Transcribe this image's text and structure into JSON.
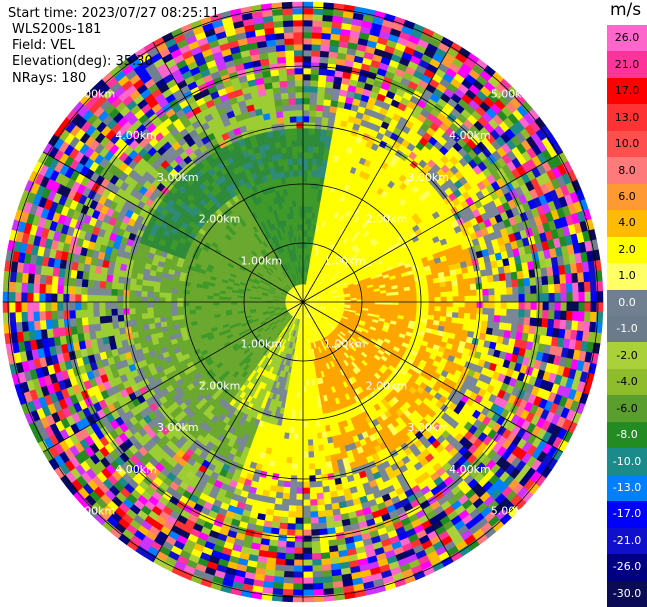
{
  "header": {
    "start_time": "Start time: 2023/07/27 08:25:11",
    "instrument": "WLS200s-181",
    "field": "Field: VEL",
    "elevation": "Elevation(deg): 35.30",
    "nrays": "NRays: 180"
  },
  "colorbar": {
    "unit": "m/s",
    "ticks": [
      "26.0",
      "21.0",
      "17.0",
      "13.0",
      "10.0",
      "8.0",
      "6.0",
      "4.0",
      "2.0",
      "1.0",
      "0.0",
      "-1.0",
      "-2.0",
      "-4.0",
      "-6.0",
      "-8.0",
      "-10.0",
      "-13.0",
      "-17.0",
      "-21.0",
      "-26.0",
      "-30.0"
    ],
    "colors": [
      "#ff66cc",
      "#ff3399",
      "#ff0000",
      "#ff3333",
      "#ff5050",
      "#ff7a7a",
      "#ff9933",
      "#ffbb00",
      "#ffff00",
      "#ffff66",
      "#708090",
      "#6b7b8b",
      "#aad13a",
      "#8fbc2a",
      "#5a9e2d",
      "#228b22",
      "#1b8a8a",
      "#0080ff",
      "#0000ff",
      "#1010cc",
      "#000080",
      "#0a0a55"
    ]
  },
  "range_rings": {
    "labels": [
      "1.00km",
      "2.00km",
      "3.00km",
      "4.00km",
      "5.00km"
    ]
  }
}
